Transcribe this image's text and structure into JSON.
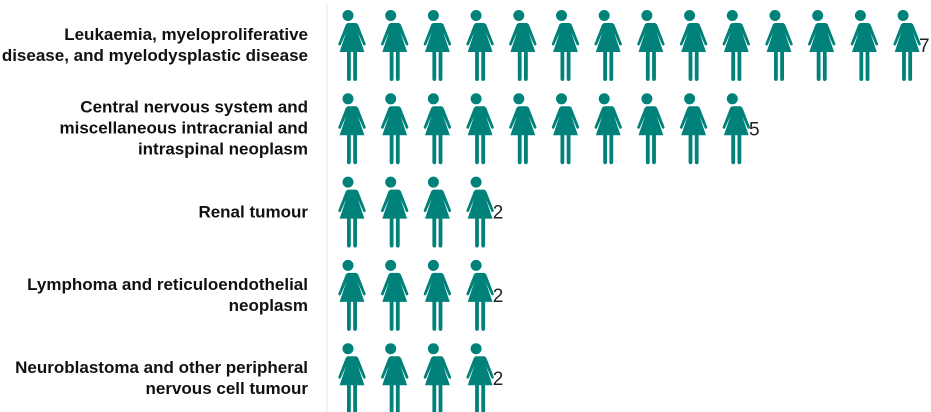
{
  "chart_data": {
    "type": "pictogram",
    "categories": [
      "Leukaemia, myeloproliferative disease, and myelodysplastic disease",
      "Central nervous system and miscellaneous intracranial and intraspinal neoplasm",
      "Renal tumour",
      "Lymphoma and reticuloendothelial neoplasm",
      "Neuroblastoma and other peripheral nervous cell tumour"
    ],
    "values": [
      7,
      5,
      2,
      2,
      2
    ],
    "color": "#00827a"
  }
}
